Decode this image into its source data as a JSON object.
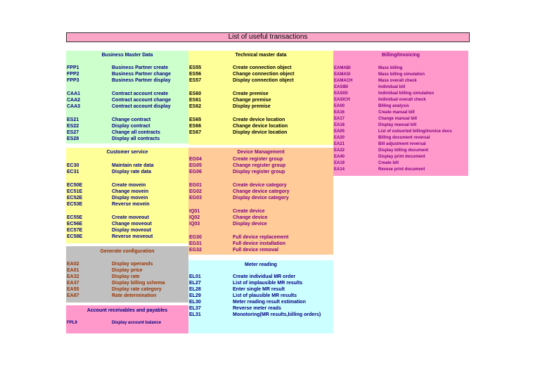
{
  "title": "List of useful transactions",
  "sections": [
    {
      "id": "business-master-data",
      "header": "Business Master Data",
      "bg": "#ccffcc",
      "text_color": "#000080",
      "rows": [
        {
          "code": "FPP1",
          "desc": "Business Partner create"
        },
        {
          "code": "FPP2",
          "desc": "Business Partner change"
        },
        {
          "code": "FPP3",
          "desc": "Business Partner display"
        },
        {
          "code": "CAA1",
          "desc": "Contract account create"
        },
        {
          "code": "CAA2",
          "desc": "Contract account change"
        },
        {
          "code": "CAA3",
          "desc": "Contract account display"
        },
        {
          "code": "ES21",
          "desc": "Change contract"
        },
        {
          "code": "ES22",
          "desc": "Display contract"
        },
        {
          "code": "ES27",
          "desc": "Change all contracts"
        },
        {
          "code": "ES28",
          "desc": "Display all contracts"
        }
      ]
    },
    {
      "id": "customer-service",
      "header": "Customer service",
      "bg": "#ffff99",
      "text_color": "#000080",
      "rows": [
        {
          "code": "EC30",
          "desc": "Maintain rate data"
        },
        {
          "code": "EC31",
          "desc": "Display rate data"
        },
        {
          "code": "EC50E",
          "desc": "Create movein"
        },
        {
          "code": "EC51E",
          "desc": "Change movein"
        },
        {
          "code": "EC52E",
          "desc": "Display movein"
        },
        {
          "code": "EC53E",
          "desc": "Reverse movein"
        },
        {
          "code": "EC55E",
          "desc": "Create moveout"
        },
        {
          "code": "EC56E",
          "desc": "Change moveout"
        },
        {
          "code": "EC57E",
          "desc": "Display moveout"
        },
        {
          "code": "EC58E",
          "desc": "Reverse moveout"
        }
      ]
    },
    {
      "id": "generate-configuration",
      "header": "Generate configuration",
      "bg": "#c0c0c0",
      "text_color": "#993300",
      "rows": [
        {
          "code": "EA02",
          "desc": "Display operands"
        },
        {
          "code": "EA01",
          "desc": "Display price"
        },
        {
          "code": "EA32",
          "desc": "Display rate"
        },
        {
          "code": "EA37",
          "desc": "Display billing schema"
        },
        {
          "code": "EA55",
          "desc": "Display rate category"
        },
        {
          "code": "EA87",
          "desc": "Rate determination"
        }
      ]
    },
    {
      "id": "account-receivables",
      "header": "Account receivables and payables",
      "bg": "#ff99cc",
      "text_color": "#000080",
      "rows": [
        {
          "code": "FPL9",
          "desc": "Display account balance"
        }
      ]
    },
    {
      "id": "technical-master-data",
      "header": "Technical master data",
      "bg": "#ffff99",
      "text_color": "#000000",
      "rows": [
        {
          "code": "ES55",
          "desc": "Create connection object"
        },
        {
          "code": "ES56",
          "desc": "Change connection object"
        },
        {
          "code": "ES57",
          "desc": "Display connection object"
        },
        {
          "code": "ES60",
          "desc": "Create premise"
        },
        {
          "code": "ES61",
          "desc": "Change premise"
        },
        {
          "code": "ES62",
          "desc": "Display premise"
        },
        {
          "code": "ES65",
          "desc": "Create device location"
        },
        {
          "code": "ES66",
          "desc": "Change device location"
        },
        {
          "code": "ES67",
          "desc": "Display device location"
        }
      ]
    },
    {
      "id": "device-management",
      "header": "Device Management",
      "bg": "#ffcc99",
      "text_color": "#800080",
      "rows": [
        {
          "code": "EG04",
          "desc": "Create register group"
        },
        {
          "code": "EG05",
          "desc": "Change register group"
        },
        {
          "code": "EG06",
          "desc": "Display register group"
        },
        {
          "code": "EG01",
          "desc": "Create device category"
        },
        {
          "code": "EG02",
          "desc": "Change device category"
        },
        {
          "code": "EG03",
          "desc": "Display device category"
        },
        {
          "code": "IQ01",
          "desc": "Create device"
        },
        {
          "code": "IQ02",
          "desc": "Change device"
        },
        {
          "code": "IQ03",
          "desc": "Display device"
        },
        {
          "code": "EG30",
          "desc": "Full device replacement"
        },
        {
          "code": "EG31",
          "desc": "Full device installation"
        },
        {
          "code": "EG32",
          "desc": "Full device removal"
        }
      ]
    },
    {
      "id": "meter-reading",
      "header": "Meter reading",
      "bg": "#ccffff",
      "text_color": "#000080",
      "rows": [
        {
          "code": "EL01",
          "desc": "Create individual MR order"
        },
        {
          "code": "EL27",
          "desc": "List of implausible MR results"
        },
        {
          "code": "EL28",
          "desc": "Enter single MR result"
        },
        {
          "code": "EL29",
          "desc": "List of plausible MR results"
        },
        {
          "code": "EL30",
          "desc": "Meter reading result estimation"
        },
        {
          "code": "EL37",
          "desc": "Reverse meter reads"
        },
        {
          "code": "EL31",
          "desc": "Monotoring(MR results,billing orders)"
        }
      ]
    },
    {
      "id": "billing-invoicing",
      "header": "Billing/Invoicing",
      "bg": "#ff99cc",
      "text_color": "#800080",
      "rows": [
        {
          "code": "EAMABI",
          "desc": "Mass billing"
        },
        {
          "code": "EAMASI",
          "desc": "Mass billing simulation"
        },
        {
          "code": "EAMACH",
          "desc": "Mass overall check"
        },
        {
          "code": "EASIBI",
          "desc": "Individual bill"
        },
        {
          "code": "EASISI",
          "desc": "Individual billing simulation"
        },
        {
          "code": "EASICH",
          "desc": "Individual overall check"
        },
        {
          "code": "EA00",
          "desc": "Billing analysis"
        },
        {
          "code": "EA16",
          "desc": "Create manual bill"
        },
        {
          "code": "EA17",
          "desc": "Change manual bill"
        },
        {
          "code": "EA18",
          "desc": "Display manual bill"
        },
        {
          "code": "EA05",
          "desc": "List of outsorted billing/invoice docs"
        },
        {
          "code": "EA20",
          "desc": "Billing document reversal"
        },
        {
          "code": "EA21",
          "desc": "Bill adjustment reversal"
        },
        {
          "code": "EA22",
          "desc": "Display billing document"
        },
        {
          "code": "EA40",
          "desc": "Display print document"
        },
        {
          "code": "EA19",
          "desc": "Create bill"
        },
        {
          "code": "EA14",
          "desc": "Revese print document"
        }
      ]
    }
  ]
}
